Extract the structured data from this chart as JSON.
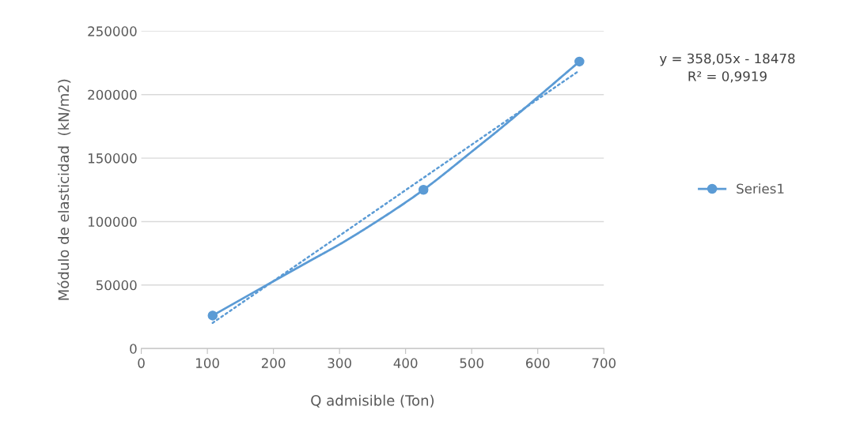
{
  "chart_data": {
    "type": "line",
    "xlabel": "Q admisible (Ton)",
    "ylabel": "Módulo de elasticidad  (kN/m2)",
    "xlim": [
      0,
      700
    ],
    "xticks": [
      0,
      100,
      200,
      300,
      400,
      500,
      600,
      700
    ],
    "ylim": [
      0,
      250000
    ],
    "yticks": [
      0,
      50000,
      100000,
      150000,
      200000,
      250000
    ],
    "grid": "y",
    "legend": "right",
    "annotations": [
      "y = 358,05x - 18478\nR² = 0,9919"
    ],
    "series": [
      {
        "name": "Series1",
        "color": "#5b9bd5",
        "x": [
          108,
          200,
          262,
          300,
          350,
          427,
          500,
          550,
          600,
          663
        ],
        "values": [
          26000,
          53000,
          71000,
          82000,
          98000,
          125000,
          155000,
          176000,
          198000,
          226000
        ],
        "marker": "none",
        "line_style": "solid"
      },
      {
        "type": "scatter",
        "color": "#5b9bd5",
        "x": [
          108,
          427,
          663
        ],
        "values": [
          26000,
          125000,
          226000
        ],
        "marker": "circle"
      },
      {
        "color": "#5b9bd5",
        "x": [
          108,
          663
        ],
        "values": [
          20200,
          218900
        ],
        "marker": "none",
        "line_style": "dotted"
      }
    ]
  }
}
